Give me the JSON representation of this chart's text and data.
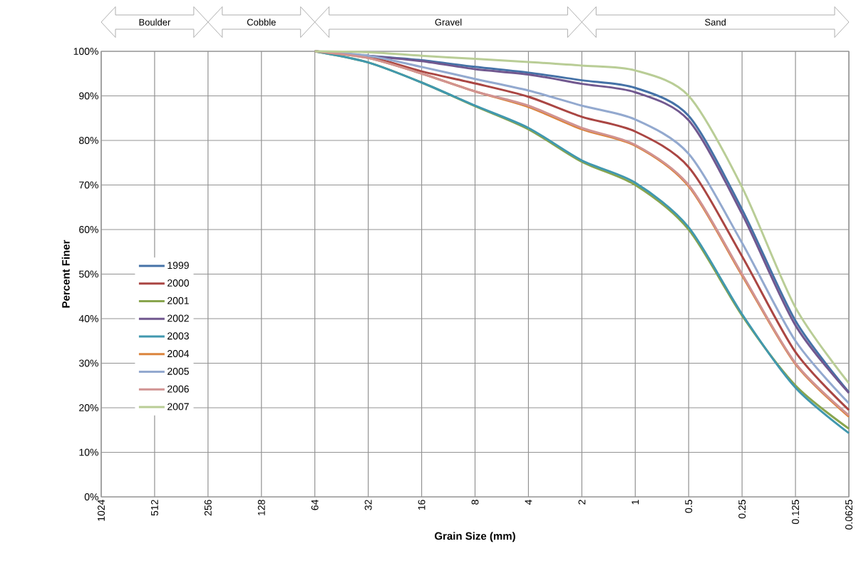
{
  "chart_data": {
    "type": "line",
    "xlabel": "Grain Size (mm)",
    "ylabel": "Percent Finer",
    "x": [
      64,
      32,
      16,
      8,
      4,
      2,
      1,
      0.5,
      0.25,
      0.125,
      0.0625
    ],
    "series": [
      {
        "name": "1999",
        "color": "#4572a7",
        "values": [
          100,
          99,
          98,
          96.5,
          95.2,
          93.5,
          91.8,
          85.5,
          64.5,
          39.5,
          23.5
        ]
      },
      {
        "name": "2000",
        "color": "#aa4643",
        "values": [
          100,
          98.8,
          95.5,
          92.8,
          89.8,
          85.3,
          82,
          74,
          54,
          32.5,
          19.5
        ]
      },
      {
        "name": "2001",
        "color": "#89a54e",
        "values": [
          100,
          97.5,
          93,
          87.7,
          82.5,
          75.2,
          70,
          60,
          40.7,
          25,
          15.3
        ]
      },
      {
        "name": "2002",
        "color": "#71588f",
        "values": [
          100,
          99,
          97.8,
          96,
          94.8,
          92.7,
          90.8,
          84.5,
          63.5,
          38.5,
          23.3
        ]
      },
      {
        "name": "2003",
        "color": "#4198af",
        "values": [
          100,
          97.5,
          93,
          87.8,
          82.8,
          75.5,
          70.5,
          60.5,
          41,
          24.5,
          14.3
        ]
      },
      {
        "name": "2004",
        "color": "#db843d",
        "values": [
          100,
          98.5,
          95,
          91,
          87.5,
          82.5,
          78.8,
          69.7,
          49.7,
          29.8,
          18
        ]
      },
      {
        "name": "2005",
        "color": "#93a9cf",
        "values": [
          100,
          99,
          96.5,
          93.8,
          91.2,
          87.8,
          84.7,
          77,
          57,
          35,
          21
        ]
      },
      {
        "name": "2006",
        "color": "#d19392",
        "values": [
          100,
          98.5,
          95,
          91,
          87.8,
          82.8,
          79,
          70,
          50,
          30,
          18.3
        ]
      },
      {
        "name": "2007",
        "color": "#b9cd96",
        "values": [
          100,
          99.8,
          99,
          98.3,
          97.6,
          96.8,
          95.7,
          90,
          69.5,
          42.5,
          25.5
        ]
      }
    ],
    "log": "x",
    "xlim": [
      1024,
      0.0625
    ],
    "xticks": [
      1024,
      512,
      256,
      128,
      64,
      32,
      16,
      8,
      4,
      2,
      1,
      0.5,
      0.25,
      0.125,
      0.0625
    ],
    "ylim": [
      0,
      100
    ],
    "yticks": [
      {
        "value": 0,
        "label": "0%"
      },
      {
        "value": 10,
        "label": "10%"
      },
      {
        "value": 20,
        "label": "20%"
      },
      {
        "value": 30,
        "label": "30%"
      },
      {
        "value": 40,
        "label": "40%"
      },
      {
        "value": 50,
        "label": "50%"
      },
      {
        "value": 60,
        "label": "60%"
      },
      {
        "value": 70,
        "label": "70%"
      },
      {
        "value": 80,
        "label": "80%"
      },
      {
        "value": 90,
        "label": "90%"
      },
      {
        "value": 100,
        "label": "100%"
      }
    ],
    "annotations": [
      "Boulder",
      "Cobble",
      "Gravel",
      "Sand"
    ],
    "grid": true,
    "legend": "left",
    "marker": "none",
    "line_style": "solid"
  }
}
